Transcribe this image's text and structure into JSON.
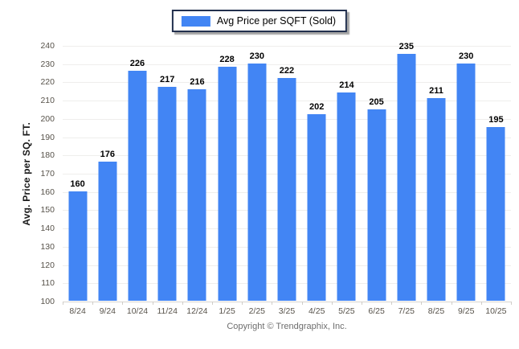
{
  "legend": {
    "label": "Avg Price per SQFT (Sold)",
    "swatch_color": "#4285f4",
    "swatch_icon": "legend-swatch-blue"
  },
  "footer": {
    "copyright": "Copyright © Trendgraphix, Inc."
  },
  "chart_data": {
    "type": "bar",
    "title": "",
    "series_name": "Avg Price per SQFT (Sold)",
    "categories": [
      "8/24",
      "9/24",
      "10/24",
      "11/24",
      "12/24",
      "1/25",
      "2/25",
      "3/25",
      "4/25",
      "5/25",
      "6/25",
      "7/25",
      "8/25",
      "9/25",
      "10/25"
    ],
    "values": [
      160,
      176,
      226,
      217,
      216,
      228,
      230,
      222,
      202,
      214,
      205,
      235,
      211,
      230,
      195
    ],
    "xlabel": "",
    "ylabel": "Avg. Price per SQ. FT.",
    "ylim": [
      100,
      240
    ],
    "ytick_step": 10,
    "grid": true,
    "legend_position": "top-center",
    "bar_color": "#4285f4",
    "value_labels_shown": true
  },
  "colors": {
    "bar": "#4285f4",
    "gridline": "#efeeec",
    "baseline": "#d8d5d0",
    "tick_text": "#57524a",
    "value_label": "#000000",
    "legend_border": "#22304e",
    "footer_text": "#6e6e6e",
    "background": "#ffffff"
  }
}
